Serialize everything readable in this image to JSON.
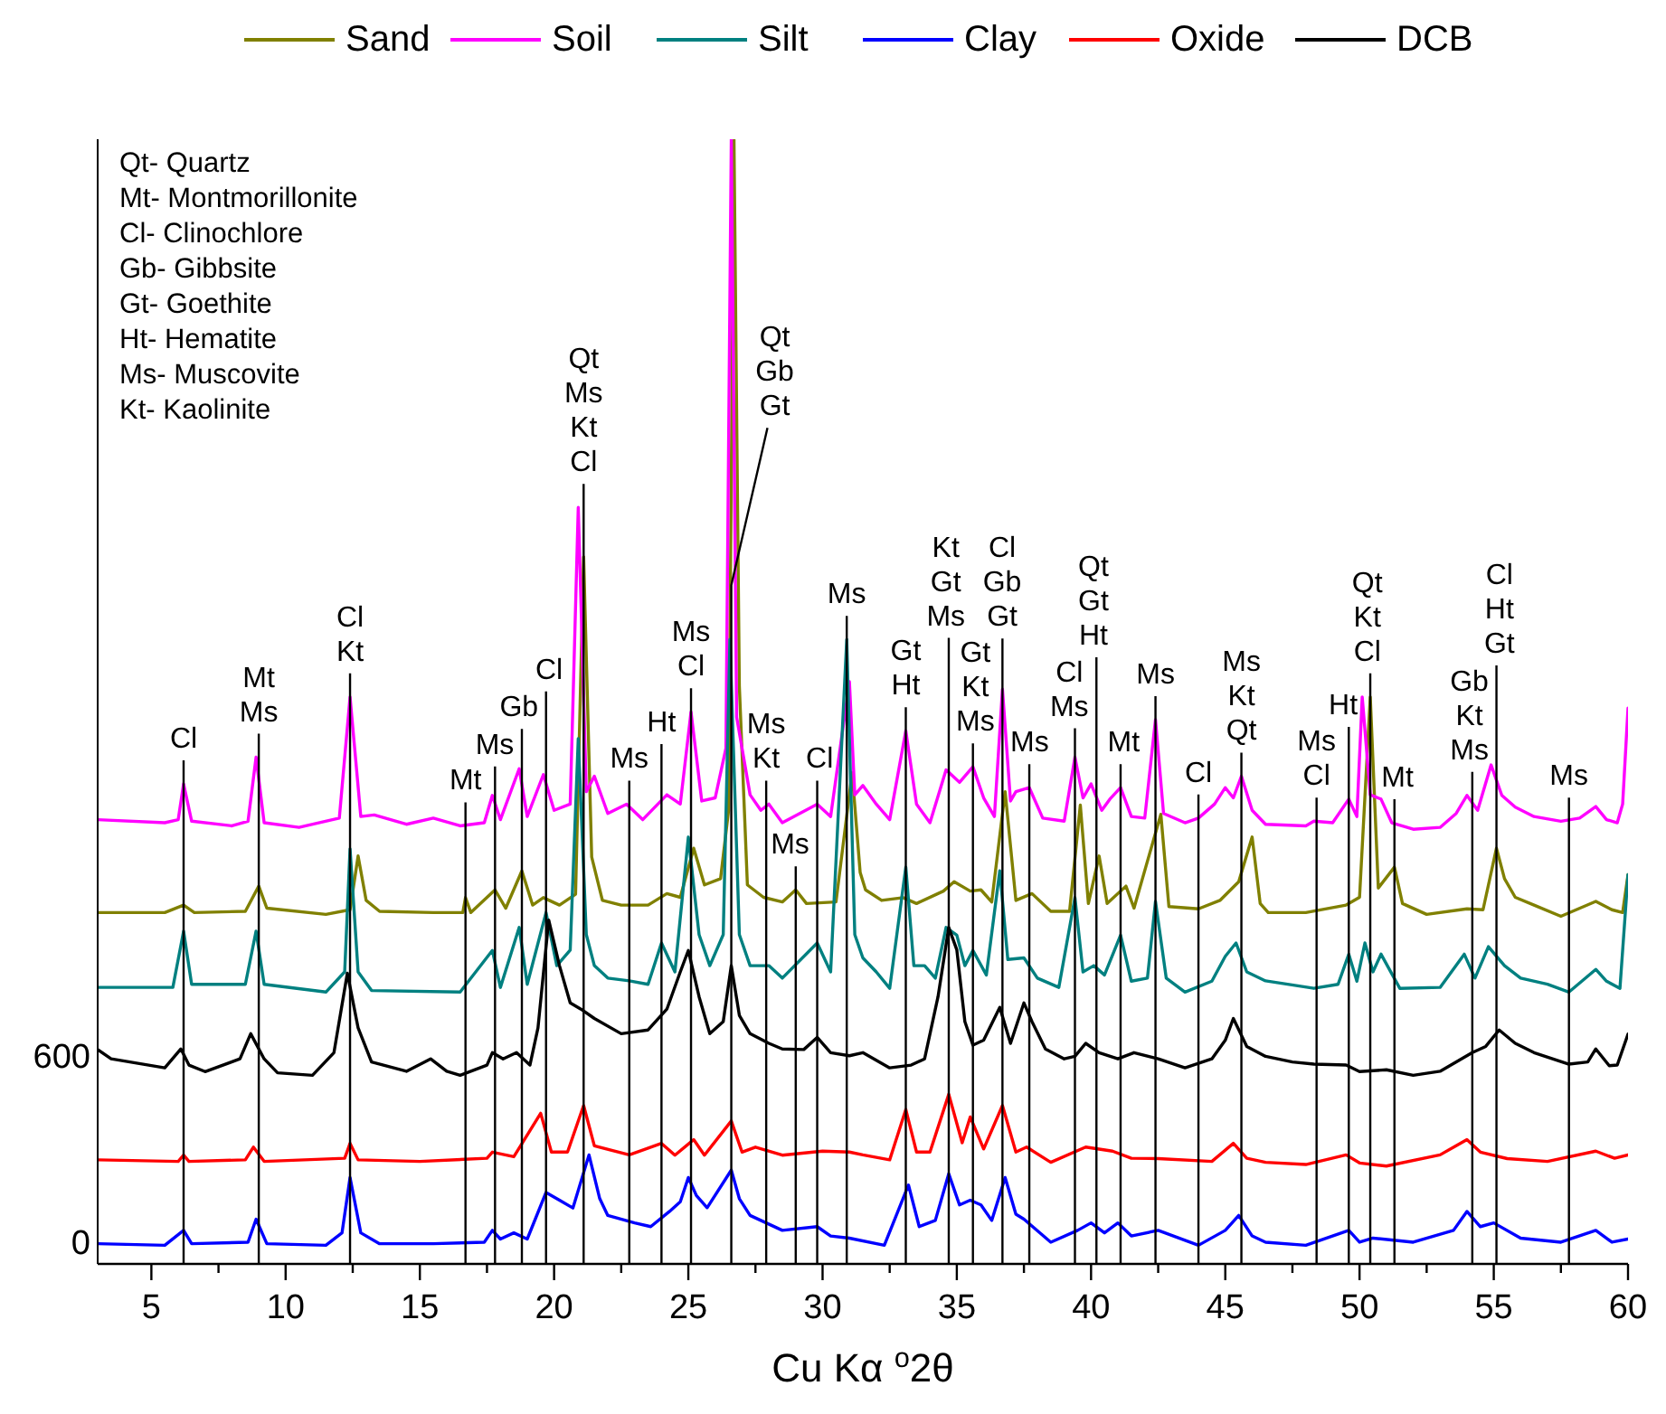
{
  "chart_data": {
    "type": "line",
    "xlabel": "Cu Kα $^{o}$2θ",
    "xlim": [
      3,
      60
    ],
    "ylim": [
      -60,
      3560
    ],
    "xticks": [
      5,
      {
        "value": 7.5,
        "label": null
      },
      10,
      {
        "value": 12.5,
        "label": null
      },
      15,
      {
        "value": 17.5,
        "label": null
      },
      20,
      {
        "value": 22.5,
        "label": null
      },
      25,
      {
        "value": 27.5,
        "label": null
      },
      30,
      {
        "value": 32.5,
        "label": null
      },
      35,
      {
        "value": 37.5,
        "label": null
      },
      40,
      {
        "value": 42.5,
        "label": null
      },
      45,
      {
        "value": 47.5,
        "label": null
      },
      50,
      {
        "value": 52.5,
        "label": null
      },
      55,
      {
        "value": 57.5,
        "label": null
      },
      60
    ],
    "yticks": [
      0,
      600
    ],
    "legend": "top",
    "annotations": [
      "Qt- Quartz",
      "Mt- Montmorillonite",
      "Cl- Clinochlore",
      "Gb- Gibbsite",
      "Gt- Goethite",
      "Ht- Hematite",
      "Ms- Muscovite",
      "Kt- Kaolinite"
    ],
    "series": [
      {
        "name": "Sand",
        "color": "#808000",
        "x": [
          3,
          5.5,
          6.2,
          6.6,
          8.5,
          9.0,
          9.3,
          11.5,
          12.4,
          12.7,
          13.0,
          13.5,
          15.5,
          16.6,
          16.7,
          16.9,
          17.8,
          18.2,
          18.8,
          19.2,
          19.6,
          20.2,
          20.8,
          21.1,
          21.4,
          21.8,
          22.5,
          23.5,
          24.2,
          24.7,
          25.2,
          25.6,
          26.2,
          26.5,
          26.7,
          26.9,
          27.2,
          27.8,
          28.5,
          29.0,
          29.4,
          30.5,
          31.1,
          31.4,
          31.6,
          32.2,
          33.0,
          33.5,
          34.5,
          34.9,
          35.5,
          35.9,
          36.3,
          36.8,
          37.2,
          37.8,
          38.5,
          39.2,
          39.6,
          39.9,
          40.3,
          40.6,
          41.3,
          41.6,
          42.6,
          42.9,
          44.0,
          44.8,
          45.5,
          46.0,
          46.3,
          46.6,
          48.0,
          49.5,
          50.0,
          50.4,
          50.7,
          51.3,
          51.6,
          52.5,
          54.0,
          54.6,
          55.1,
          55.4,
          55.8,
          56.5,
          57.5,
          58.8,
          59.4,
          59.8,
          60.0
        ],
        "values": [
          1071,
          1071,
          1095,
          1071,
          1075,
          1156,
          1085,
          1065,
          1080,
          1253,
          1110,
          1075,
          1071,
          1071,
          1119,
          1071,
          1144,
          1085,
          1205,
          1095,
          1119,
          1095,
          1130,
          2216,
          1250,
          1110,
          1095,
          1095,
          1132,
          1120,
          1278,
          1160,
          1180,
          1400,
          3560,
          1800,
          1160,
          1120,
          1105,
          1144,
          1100,
          1105,
          1522,
          1200,
          1144,
          1110,
          1119,
          1100,
          1140,
          1170,
          1140,
          1144,
          1105,
          1460,
          1110,
          1132,
          1075,
          1075,
          1417,
          1100,
          1253,
          1100,
          1156,
          1085,
          1387,
          1090,
          1083,
          1110,
          1170,
          1314,
          1100,
          1071,
          1071,
          1095,
          1120,
          1765,
          1150,
          1217,
          1100,
          1065,
          1083,
          1080,
          1278,
          1180,
          1120,
          1095,
          1059,
          1107,
          1080,
          1071,
          1193
        ]
      },
      {
        "name": "Soil",
        "color": "#ff00ff",
        "x": [
          3,
          5.5,
          6.0,
          6.2,
          6.5,
          8.0,
          8.6,
          8.9,
          9.2,
          10.5,
          12.0,
          12.4,
          12.8,
          13.3,
          14.5,
          15.5,
          16.5,
          17.4,
          17.7,
          18.0,
          18.7,
          19.0,
          19.6,
          20.0,
          20.6,
          20.9,
          21.2,
          21.5,
          22.0,
          22.7,
          23.3,
          24.2,
          24.7,
          25.1,
          25.5,
          26.0,
          26.4,
          26.6,
          26.8,
          27.3,
          27.7,
          28.0,
          28.5,
          29.8,
          30.3,
          31.0,
          31.2,
          31.5,
          32.0,
          32.5,
          33.1,
          33.5,
          34.0,
          34.6,
          35.1,
          35.6,
          36.0,
          36.4,
          36.7,
          37.0,
          37.2,
          37.7,
          38.2,
          39.0,
          39.4,
          39.7,
          40.0,
          40.4,
          40.7,
          41.1,
          41.5,
          42.0,
          42.4,
          42.7,
          43.5,
          44.0,
          44.6,
          45.0,
          45.3,
          45.6,
          46.0,
          46.5,
          48.0,
          48.3,
          49.0,
          49.6,
          49.9,
          50.1,
          50.4,
          50.8,
          51.2,
          52.0,
          53.0,
          53.6,
          54.0,
          54.4,
          54.9,
          55.3,
          55.8,
          56.5,
          57.5,
          58.2,
          58.8,
          59.2,
          59.6,
          59.8,
          60.0
        ],
        "values": [
          1370,
          1360,
          1370,
          1485,
          1365,
          1350,
          1365,
          1571,
          1360,
          1345,
          1375,
          1765,
          1380,
          1385,
          1355,
          1375,
          1350,
          1360,
          1448,
          1370,
          1534,
          1380,
          1515,
          1400,
          1420,
          2375,
          1460,
          1510,
          1390,
          1420,
          1370,
          1450,
          1420,
          1717,
          1430,
          1440,
          1600,
          3560,
          1700,
          1450,
          1400,
          1420,
          1360,
          1420,
          1380,
          1814,
          1450,
          1480,
          1420,
          1370,
          1656,
          1420,
          1360,
          1530,
          1490,
          1540,
          1440,
          1380,
          1790,
          1430,
          1460,
          1473,
          1375,
          1365,
          1571,
          1440,
          1485,
          1400,
          1436,
          1473,
          1380,
          1375,
          1692,
          1390,
          1360,
          1375,
          1420,
          1473,
          1440,
          1510,
          1400,
          1355,
          1350,
          1365,
          1360,
          1436,
          1380,
          1765,
          1450,
          1436,
          1360,
          1339,
          1345,
          1390,
          1448,
          1400,
          1546,
          1448,
          1410,
          1380,
          1365,
          1375,
          1412,
          1370,
          1360,
          1420,
          1729
        ]
      },
      {
        "name": "Silt",
        "color": "#008080",
        "x": [
          3,
          5.8,
          6.2,
          6.5,
          8.5,
          8.9,
          9.2,
          11.5,
          12.2,
          12.4,
          12.7,
          13.2,
          16.5,
          17.7,
          18.0,
          18.7,
          19.0,
          19.7,
          20.1,
          20.6,
          20.9,
          21.2,
          21.5,
          22.0,
          22.8,
          23.5,
          24.0,
          24.5,
          25.0,
          25.4,
          25.8,
          26.3,
          26.55,
          26.9,
          27.3,
          28.0,
          28.5,
          29.8,
          30.3,
          30.9,
          31.2,
          31.5,
          32.0,
          32.5,
          33.1,
          33.4,
          33.8,
          34.2,
          34.6,
          35.0,
          35.3,
          35.6,
          36.1,
          36.6,
          36.9,
          37.5,
          38.0,
          38.8,
          39.4,
          39.7,
          40.1,
          40.5,
          41.1,
          41.5,
          42.1,
          42.4,
          42.8,
          43.5,
          44.5,
          45.0,
          45.4,
          45.8,
          46.5,
          48.3,
          49.2,
          49.6,
          49.9,
          50.2,
          50.5,
          50.8,
          51.5,
          53.0,
          53.9,
          54.3,
          54.8,
          55.4,
          56.0,
          57.0,
          57.8,
          58.8,
          59.2,
          59.7,
          60.0
        ],
        "values": [
          830,
          830,
          1011,
          840,
          840,
          1011,
          840,
          815,
          880,
          1276,
          880,
          820,
          815,
          949,
          830,
          1023,
          840,
          1071,
          900,
          950,
          1631,
          1000,
          900,
          860,
          851,
          840,
          973,
          880,
          1314,
          1000,
          900,
          1000,
          1950,
          1000,
          900,
          900,
          860,
          973,
          880,
          1950,
          1000,
          925,
          880,
          827,
          1217,
          900,
          900,
          860,
          1023,
          998,
          900,
          949,
          870,
          1205,
          920,
          925,
          860,
          830,
          1119,
          880,
          900,
          870,
          998,
          850,
          860,
          1107,
          860,
          815,
          850,
          930,
          973,
          880,
          851,
          827,
          840,
          937,
          850,
          973,
          880,
          937,
          827,
          830,
          937,
          860,
          961,
          900,
          860,
          840,
          815,
          888,
          850,
          827,
          1193
        ]
      },
      {
        "name": "Clay",
        "color": "#0000ff",
        "x": [
          3,
          5.5,
          6.2,
          6.5,
          8.6,
          8.9,
          9.3,
          11.5,
          12.1,
          12.4,
          12.8,
          13.5,
          15.5,
          17.4,
          17.7,
          18.0,
          18.5,
          19.0,
          19.7,
          20.2,
          20.7,
          21.3,
          21.7,
          22.0,
          23.0,
          23.6,
          24.3,
          24.7,
          25.0,
          25.3,
          25.7,
          26.6,
          26.9,
          27.3,
          28.5,
          29.8,
          30.3,
          31.0,
          32.3,
          33.2,
          33.6,
          34.2,
          34.7,
          35.1,
          35.5,
          35.9,
          36.3,
          36.8,
          37.2,
          37.5,
          38.5,
          39.5,
          40.0,
          40.5,
          41.0,
          41.5,
          42.5,
          44.0,
          45.0,
          45.5,
          46.0,
          46.5,
          48.0,
          49.6,
          50.0,
          50.5,
          52.0,
          53.5,
          54.0,
          54.5,
          55.0,
          56.0,
          57.5,
          58.8,
          59.4,
          60.0
        ],
        "values": [
          5,
          0,
          48,
          5,
          10,
          84,
          5,
          0,
          40,
          218,
          40,
          5,
          5,
          10,
          48,
          20,
          40,
          20,
          170,
          145,
          120,
          291,
          150,
          96,
          72,
          60,
          109,
          140,
          218,
          160,
          121,
          242,
          150,
          96,
          48,
          60,
          30,
          23,
          0,
          194,
          60,
          80,
          230,
          130,
          145,
          130,
          80,
          218,
          100,
          84,
          10,
          48,
          72,
          40,
          72,
          30,
          48,
          0,
          48,
          96,
          30,
          10,
          0,
          48,
          10,
          23,
          10,
          48,
          109,
          60,
          72,
          23,
          10,
          48,
          10,
          20
        ]
      },
      {
        "name": "Oxide",
        "color": "#ff0000",
        "x": [
          3,
          6.0,
          6.2,
          6.4,
          8.5,
          8.8,
          9.2,
          12.2,
          12.4,
          12.7,
          15,
          17.5,
          17.7,
          18.5,
          19.5,
          19.9,
          20.5,
          21.1,
          21.5,
          22.8,
          24.0,
          24.5,
          25.2,
          25.6,
          26.6,
          27.0,
          27.5,
          28.5,
          30.0,
          31.0,
          31.5,
          32.5,
          33.1,
          33.5,
          34.0,
          34.7,
          35.2,
          35.5,
          36.0,
          36.7,
          37.2,
          37.6,
          38.5,
          39.8,
          40.8,
          41.5,
          42.5,
          44.5,
          45.3,
          45.8,
          46.5,
          48.0,
          49.5,
          50.0,
          51.0,
          53.0,
          54.0,
          54.5,
          55.5,
          57.0,
          58.8,
          59.5,
          60.0
        ],
        "values": [
          275,
          270,
          290,
          270,
          275,
          316,
          270,
          280,
          328,
          275,
          270,
          280,
          300,
          285,
          425,
          300,
          300,
          450,
          320,
          291,
          328,
          290,
          340,
          290,
          400,
          300,
          316,
          290,
          303,
          300,
          291,
          275,
          437,
          300,
          300,
          486,
          330,
          413,
          310,
          450,
          300,
          316,
          267,
          316,
          303,
          280,
          279,
          270,
          328,
          280,
          267,
          260,
          291,
          265,
          255,
          291,
          340,
          300,
          279,
          270,
          303,
          280,
          291
        ]
      },
      {
        "name": "DCB",
        "color": "#000000",
        "x": [
          3,
          3.5,
          5.5,
          6.1,
          6.4,
          7.0,
          8.3,
          8.7,
          9.2,
          9.7,
          11.0,
          11.8,
          12.3,
          12.7,
          13.2,
          14.5,
          15.4,
          16.0,
          16.5,
          17.5,
          17.7,
          18.1,
          18.6,
          19.1,
          19.4,
          19.8,
          20.2,
          20.6,
          21.0,
          21.5,
          22.5,
          23.5,
          24.2,
          24.7,
          25.0,
          25.4,
          25.8,
          26.3,
          26.6,
          26.9,
          27.3,
          28.0,
          28.5,
          29.3,
          29.8,
          30.3,
          31.0,
          31.5,
          32.5,
          33.3,
          33.8,
          34.3,
          34.7,
          35.0,
          35.3,
          35.6,
          36.0,
          36.6,
          37.0,
          37.5,
          37.8,
          38.3,
          39.0,
          39.4,
          39.8,
          40.3,
          41.0,
          41.6,
          42.5,
          43.5,
          44.5,
          45.0,
          45.3,
          45.8,
          46.5,
          47.5,
          48.3,
          49.5,
          50.0,
          51.0,
          52.0,
          53.0,
          54.2,
          54.7,
          55.2,
          55.8,
          56.5,
          57.8,
          58.5,
          58.8,
          59.3,
          59.6,
          60.0
        ],
        "values": [
          630,
          600,
          571,
          632,
          580,
          559,
          600,
          681,
          600,
          555,
          547,
          620,
          876,
          700,
          590,
          560,
          600,
          560,
          547,
          580,
          620,
          600,
          620,
          580,
          700,
          1047,
          900,
          780,
          760,
          730,
          681,
          693,
          760,
          880,
          949,
          800,
          681,
          720,
          900,
          740,
          681,
          650,
          632,
          630,
          669,
          620,
          610,
          620,
          571,
          580,
          600,
          800,
          1023,
          951,
          720,
          644,
          660,
          766,
          650,
          780,
          720,
          632,
          600,
          608,
          650,
          620,
          600,
          620,
          600,
          571,
          600,
          660,
          730,
          640,
          608,
          590,
          583,
          580,
          559,
          565,
          547,
          560,
          620,
          640,
          693,
          650,
          620,
          583,
          590,
          632,
          578,
          580,
          680
        ]
      }
    ],
    "ref_lines": [
      {
        "axis": "x",
        "value": 6.2,
        "label": "Cl"
      },
      {
        "axis": "x",
        "value": 9.0,
        "label": "Mt\nMs"
      },
      {
        "axis": "x",
        "value": 12.4,
        "label": "Cl\nKt"
      },
      {
        "axis": "x",
        "value": 16.7,
        "label": "Mt"
      },
      {
        "axis": "x",
        "value": 17.8,
        "label": "Ms"
      },
      {
        "axis": "x",
        "value": 18.8,
        "label": "Gb"
      },
      {
        "axis": "x",
        "value": 19.7,
        "label": "Cl"
      },
      {
        "axis": "x",
        "value": 21.1,
        "label": "Qt\nMs\nKt\nCl"
      },
      {
        "axis": "x",
        "value": 22.8,
        "label": "Ms"
      },
      {
        "axis": "x",
        "value": 24.0,
        "label": "Ht"
      },
      {
        "axis": "x",
        "value": 25.1,
        "label": "Ms\nCl"
      },
      {
        "axis": "x",
        "value": 26.6,
        "label": "Qt\nGb\nGt"
      },
      {
        "axis": "x",
        "value": 27.9,
        "label": "Ms\nKt"
      },
      {
        "axis": "x",
        "value": 29.0,
        "label": "Ms"
      },
      {
        "axis": "x",
        "value": 29.8,
        "label": "Cl"
      },
      {
        "axis": "x",
        "value": 30.9,
        "label": "Ms"
      },
      {
        "axis": "x",
        "value": 33.1,
        "label": "Gt\nHt"
      },
      {
        "axis": "x",
        "value": 34.7,
        "label": "Kt\nGt\nMs"
      },
      {
        "axis": "x",
        "value": 35.6,
        "label": "Gt\nKt\nMs"
      },
      {
        "axis": "x",
        "value": 36.7,
        "label": "Cl\nGb\nGt"
      },
      {
        "axis": "x",
        "value": 37.7,
        "label": "Ms"
      },
      {
        "axis": "x",
        "value": 39.4,
        "label": "Cl\nMs"
      },
      {
        "axis": "x",
        "value": 40.2,
        "label": "Qt\nGt\nHt"
      },
      {
        "axis": "x",
        "value": 41.1,
        "label": "Mt"
      },
      {
        "axis": "x",
        "value": 42.4,
        "label": "Ms"
      },
      {
        "axis": "x",
        "value": 44.0,
        "label": "Cl"
      },
      {
        "axis": "x",
        "value": 45.6,
        "label": "Ms\nKt\nQt"
      },
      {
        "axis": "x",
        "value": 48.4,
        "label": "Ms\nCl"
      },
      {
        "axis": "x",
        "value": 49.6,
        "label": "Ht"
      },
      {
        "axis": "x",
        "value": 50.4,
        "label": "Qt\nKt\nCl"
      },
      {
        "axis": "x",
        "value": 51.3,
        "label": "Mt"
      },
      {
        "axis": "x",
        "value": 54.2,
        "label": "Gb\nKt\nMs"
      },
      {
        "axis": "x",
        "value": 55.1,
        "label": "Cl\nHt\nGt"
      },
      {
        "axis": "x",
        "value": 57.8,
        "label": "Ms"
      }
    ]
  }
}
